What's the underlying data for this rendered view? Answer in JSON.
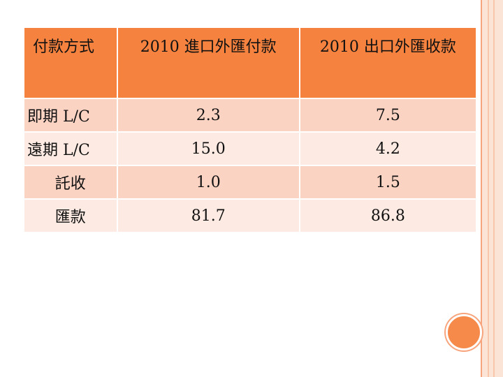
{
  "table": {
    "headers": [
      "付款方式",
      "2010 進口外匯付款",
      "2010 出口外匯收款"
    ],
    "rows": [
      [
        "即期 L/C",
        "2.3",
        "7.5"
      ],
      [
        "遠期 L/C",
        "15.0",
        "4.2"
      ],
      [
        "託收",
        "1.0",
        "1.5"
      ],
      [
        "匯款",
        "81.7",
        "86.8"
      ]
    ]
  },
  "colors": {
    "header_bg": "#f5823f",
    "row_odd_bg": "#fbd3c3",
    "row_even_bg": "#fdeae2",
    "accent": "#f58a4b"
  }
}
